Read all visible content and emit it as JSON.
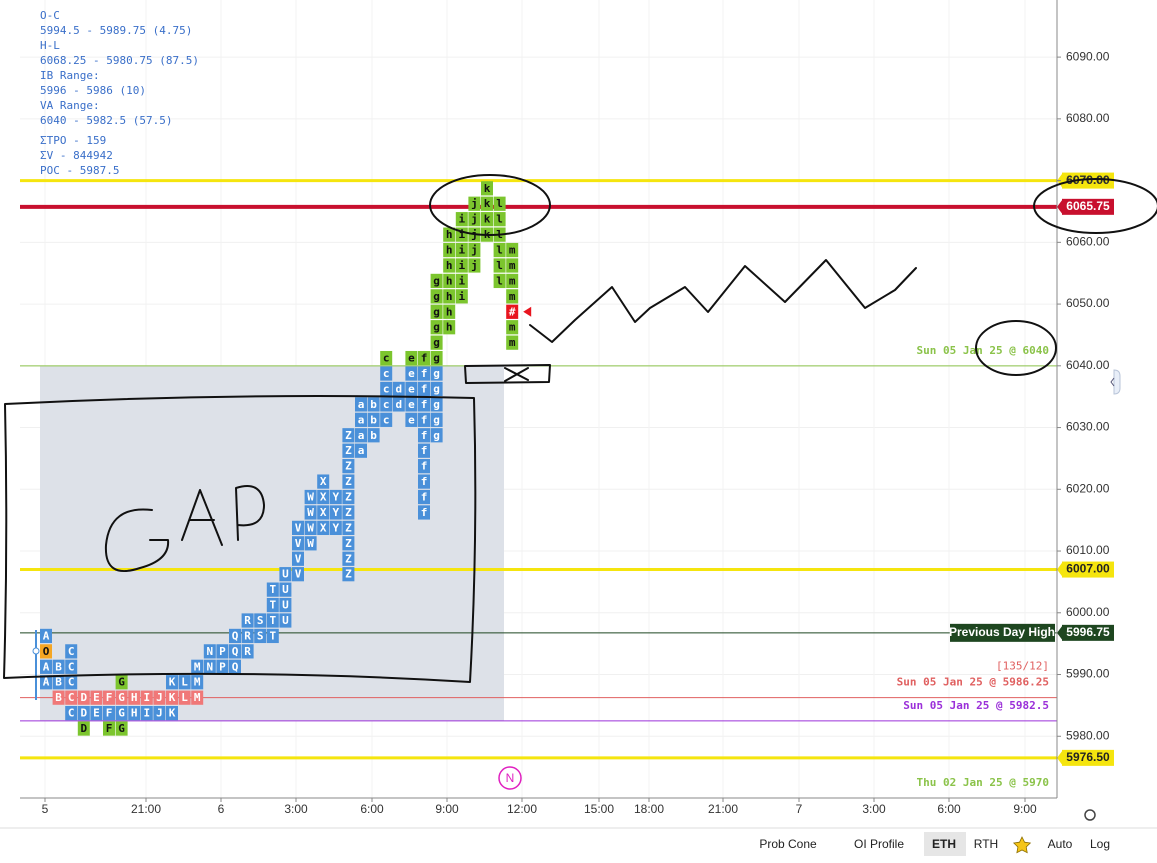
{
  "chart_data": {
    "type": "tpo",
    "stats": [
      "O-C",
      "5994.5 - 5989.75 (4.75)",
      "H-L",
      "6068.25 - 5980.75 (87.5)",
      "IB Range:",
      "5996 - 5986 (10)",
      "VA Range:",
      "6040 - 5982.5 (57.5)",
      "ΣTPO - 159",
      "ΣV - 844942",
      "POC - 5987.5"
    ],
    "ylim": [
      5970,
      6099.25
    ],
    "yticks": [
      {
        "value": 5980,
        "label": "5980.00"
      },
      {
        "value": 5990,
        "label": "5990.00"
      },
      {
        "value": 6000,
        "label": "6000.00"
      },
      {
        "value": 6010,
        "label": "6010.00"
      },
      {
        "value": 6020,
        "label": "6020.00"
      },
      {
        "value": 6030,
        "label": "6030.00"
      },
      {
        "value": 6040,
        "label": "6040.00"
      },
      {
        "value": 6050,
        "label": "6050.00"
      },
      {
        "value": 6060,
        "label": "6060.00"
      },
      {
        "value": 6070,
        "label": "6070.00"
      },
      {
        "value": 6080,
        "label": "6080.00"
      },
      {
        "value": 6090,
        "label": "6090.00"
      }
    ],
    "grid": true,
    "xlabels": [
      "5",
      "21:00",
      "6",
      "3:00",
      "6:00",
      "9:00",
      "12:00",
      "15:00",
      "18:00",
      "21:00",
      "7",
      "3:00",
      "6:00",
      "9:00"
    ],
    "value_area": [
      5982.5,
      6040
    ],
    "profile": [
      {
        "value": 5980,
        "color": "#7cc52e",
        "letters": [
          "D",
          "F",
          "G"
        ]
      },
      {
        "value": 5982.5,
        "color": "#4a90d9",
        "letters": [
          "C",
          "D",
          "E",
          "F",
          "G",
          "H",
          "I",
          "J",
          "K"
        ]
      },
      {
        "value": 5985,
        "color": "#f07878",
        "letters": [
          "B",
          "C",
          "D",
          "E",
          "F",
          "G",
          "H",
          "I",
          "J",
          "K",
          "L",
          "M"
        ]
      },
      {
        "value": 5987.5,
        "color": "#4a90d9",
        "letters": [
          "A",
          "B",
          "C",
          "K",
          "L",
          "M"
        ]
      },
      {
        "value": 5987.5,
        "color": "#7cc52e",
        "letters": [
          "G"
        ]
      },
      {
        "value": 5990,
        "color": "#4a90d9",
        "letters": [
          "A",
          "B",
          "C",
          "M",
          "N",
          "P",
          "Q"
        ]
      },
      {
        "value": 5992.5,
        "color": "#f5a623",
        "letters": [
          "O"
        ]
      },
      {
        "value": 5992.5,
        "color": "#4a90d9",
        "letters": [
          "C",
          "N",
          "P",
          "Q",
          "R"
        ]
      },
      {
        "value": 5995,
        "color": "#4a90d9",
        "letters": [
          "A",
          "Q",
          "R",
          "S",
          "T"
        ]
      },
      {
        "value": 5997.5,
        "color": "#4a90d9",
        "letters": [
          "R",
          "S",
          "T",
          "U"
        ]
      },
      {
        "value": 6000,
        "color": "#4a90d9",
        "letters": [
          "T",
          "U"
        ]
      },
      {
        "value": 6002.5,
        "color": "#4a90d9",
        "letters": [
          "T",
          "U"
        ]
      },
      {
        "value": 6005,
        "color": "#4a90d9",
        "letters": [
          "U",
          "V",
          "Z"
        ]
      },
      {
        "value": 6007.5,
        "color": "#4a90d9",
        "letters": [
          "V",
          "Z"
        ]
      },
      {
        "value": 6010,
        "color": "#4a90d9",
        "letters": [
          "V",
          "W",
          "Z"
        ]
      },
      {
        "value": 6012.5,
        "color": "#4a90d9",
        "letters": [
          "V",
          "W",
          "X",
          "Y",
          "Z"
        ]
      },
      {
        "value": 6015,
        "color": "#4a90d9",
        "letters": [
          "W",
          "X",
          "Y",
          "Z",
          "f"
        ]
      },
      {
        "value": 6017.5,
        "color": "#4a90d9",
        "letters": [
          "W",
          "X",
          "Y",
          "Z",
          "f"
        ]
      },
      {
        "value": 6020,
        "color": "#4a90d9",
        "letters": [
          "X",
          "Z",
          "f"
        ]
      },
      {
        "value": 6022.5,
        "color": "#4a90d9",
        "letters": [
          "Z",
          "f"
        ]
      },
      {
        "value": 6025,
        "color": "#4a90d9",
        "letters": [
          "Z",
          "a",
          "f"
        ]
      },
      {
        "value": 6027.5,
        "color": "#4a90d9",
        "letters": [
          "Z",
          "a",
          "b",
          "f",
          "g"
        ]
      },
      {
        "value": 6030,
        "color": "#4a90d9",
        "letters": [
          "a",
          "b",
          "c",
          "e",
          "f",
          "g"
        ]
      },
      {
        "value": 6032.5,
        "color": "#4a90d9",
        "letters": [
          "a",
          "b",
          "c",
          "d",
          "e",
          "f",
          "g"
        ]
      },
      {
        "value": 6035,
        "color": "#4a90d9",
        "letters": [
          "c",
          "d",
          "e",
          "f",
          "g"
        ]
      },
      {
        "value": 6037.5,
        "color": "#4a90d9",
        "letters": [
          "c",
          "e",
          "f",
          "g"
        ]
      },
      {
        "value": 6040,
        "color": "#7cc52e",
        "letters": [
          "c",
          "e",
          "f",
          "g"
        ]
      },
      {
        "value": 6042.5,
        "color": "#7cc52e",
        "letters": [
          "g",
          "m"
        ]
      },
      {
        "value": 6045,
        "color": "#7cc52e",
        "letters": [
          "g",
          "h",
          "m"
        ]
      },
      {
        "value": 6047.5,
        "color": "#7cc52e",
        "letters": [
          "g",
          "h"
        ]
      },
      {
        "value": 6047.5,
        "color": "#e8141e",
        "letters": [
          "#"
        ]
      },
      {
        "value": 6050,
        "color": "#7cc52e",
        "letters": [
          "g",
          "h",
          "i",
          "m"
        ]
      },
      {
        "value": 6052.5,
        "color": "#7cc52e",
        "letters": [
          "g",
          "h",
          "i",
          "l",
          "m"
        ]
      },
      {
        "value": 6055,
        "color": "#7cc52e",
        "letters": [
          "h",
          "i",
          "j",
          "l",
          "m"
        ]
      },
      {
        "value": 6057.5,
        "color": "#7cc52e",
        "letters": [
          "h",
          "i",
          "j",
          "l",
          "m"
        ]
      },
      {
        "value": 6060,
        "color": "#7cc52e",
        "letters": [
          "h",
          "i",
          "j",
          "k",
          "l"
        ]
      },
      {
        "value": 6062.5,
        "color": "#7cc52e",
        "letters": [
          "i",
          "j",
          "k",
          "l"
        ]
      },
      {
        "value": 6065,
        "color": "#7cc52e",
        "letters": [
          "j",
          "k",
          "l"
        ]
      },
      {
        "value": 6067.5,
        "color": "#7cc52e",
        "letters": [
          "k"
        ]
      }
    ],
    "levels": [
      {
        "value": 6070,
        "color": "#f5e50e",
        "width": 3,
        "tag": "6070.00"
      },
      {
        "value": 6065.75,
        "color": "#c8102e",
        "width": 4,
        "tag": "6065.75"
      },
      {
        "value": 6040,
        "color": "#8bc34a",
        "width": 1,
        "note": "Sun 05 Jan 25 @ 6040"
      },
      {
        "value": 6007,
        "color": "#f5e50e",
        "width": 3,
        "tag": "6007.00"
      },
      {
        "value": 5996.75,
        "color": "#1e4620",
        "width": 1,
        "tag": "5996.75",
        "label": "Previous Day High"
      },
      {
        "value": 5986.25,
        "color": "#e06060",
        "width": 1,
        "note": "Sun 05 Jan 25 @ 5986.25",
        "count": "[135/12]"
      },
      {
        "value": 5982.5,
        "color": "#9b30d9",
        "width": 1,
        "note": "Sun 05 Jan 25 @ 5982.5"
      },
      {
        "value": 5976.5,
        "color": "#f5e50e",
        "width": 3,
        "tag": "5976.50"
      },
      {
        "value": 5970,
        "color": "#8bc34a",
        "width": 0,
        "note": "Thu 02 Jan 25 @ 5970"
      }
    ],
    "news_marker": "N",
    "toolbar": [
      "Prob Cone",
      "OI Profile",
      "ETH",
      "RTH",
      "Auto",
      "Log"
    ]
  }
}
